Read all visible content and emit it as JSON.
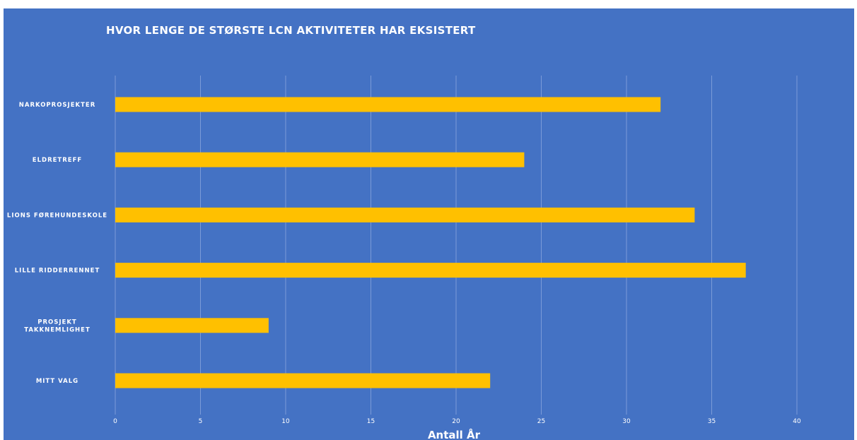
{
  "chart_data": {
    "type": "bar",
    "orientation": "horizontal",
    "title": "HVOR LENGE DE STØRSTE LCN AKTIVITETER HAR EKSISTERT",
    "xlabel": "Antall År",
    "ylabel": "",
    "categories": [
      [
        "NARKOPROSJEKTER"
      ],
      [
        "ELDRETREFF"
      ],
      [
        "LIONS FØREHUNDESKOLE"
      ],
      [
        "LILLE RIDDERRENNET"
      ],
      [
        "PROSJEKT",
        "TAKKNEMLIGHET"
      ],
      [
        "MITT VALG"
      ]
    ],
    "values": [
      32,
      24,
      34,
      37,
      9,
      22
    ],
    "xlim": [
      0,
      40
    ],
    "xticks": [
      0,
      5,
      10,
      15,
      20,
      25,
      30,
      35,
      40
    ],
    "grid": true,
    "legend": "none",
    "colors": {
      "background": "#4472C4",
      "bar": "#FFC000",
      "gridline": "#7B9BD8",
      "text": "#FFFFFF"
    }
  }
}
